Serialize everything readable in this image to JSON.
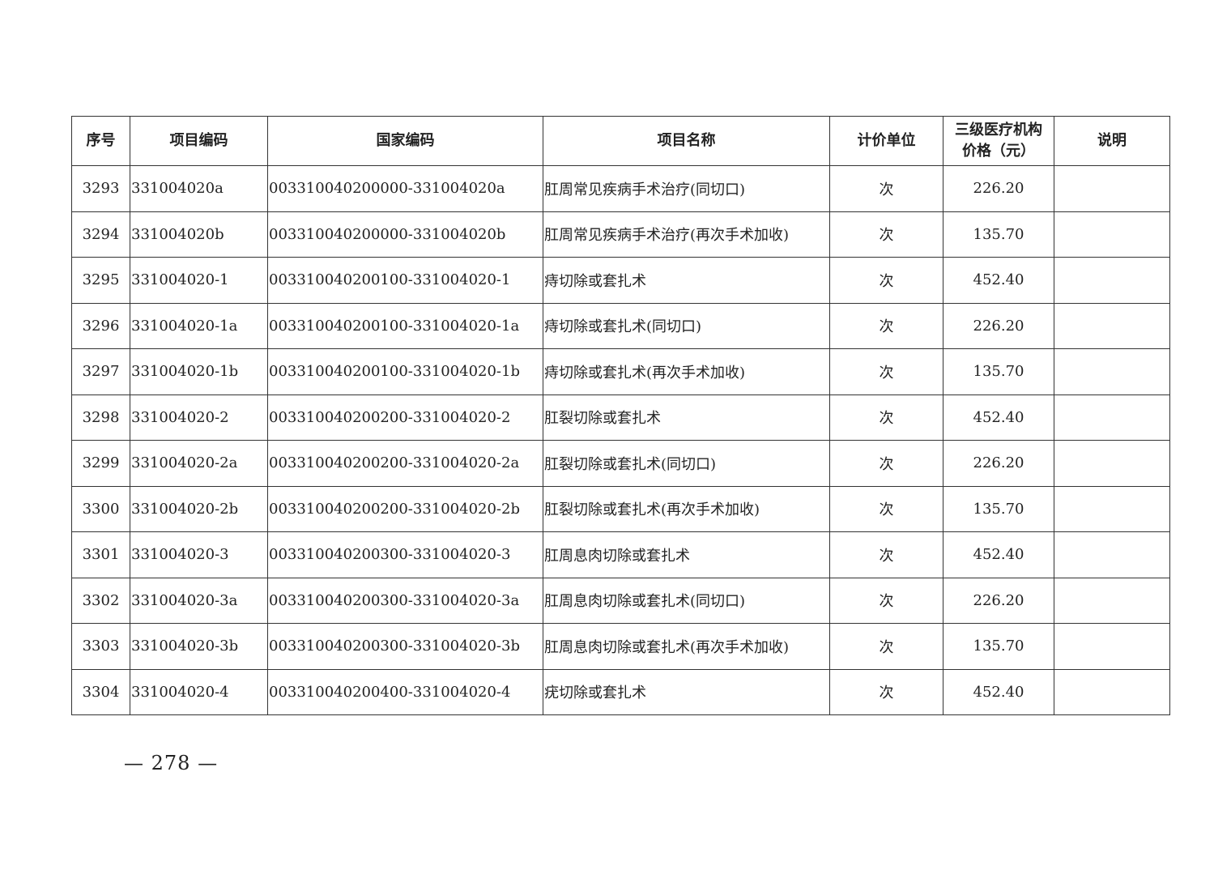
{
  "headers": [
    "序号",
    "项目编码",
    "国家编码",
    "项目名称",
    "计价单位",
    "三级医疗机构\n价格（元）",
    "说明"
  ],
  "header_price_line1": "三级医疗机构",
  "header_price_line2": "价格（元）",
  "rows": [
    {
      "no": "3293",
      "code": "331004020a",
      "national_code": "003310040200000-331004020a",
      "name": "肛周常见疾病手术治疗(同切口)",
      "unit": "次",
      "price": "226.20",
      "note": ""
    },
    {
      "no": "3294",
      "code": "331004020b",
      "national_code": "003310040200000-331004020b",
      "name": "肛周常见疾病手术治疗(再次手术加收)",
      "unit": "次",
      "price": "135.70",
      "note": ""
    },
    {
      "no": "3295",
      "code": "331004020-1",
      "national_code": "003310040200100-331004020-1",
      "name": "痔切除或套扎术",
      "unit": "次",
      "price": "452.40",
      "note": ""
    },
    {
      "no": "3296",
      "code": "331004020-1a",
      "national_code": "003310040200100-331004020-1a",
      "name": "痔切除或套扎术(同切口)",
      "unit": "次",
      "price": "226.20",
      "note": ""
    },
    {
      "no": "3297",
      "code": "331004020-1b",
      "national_code": "003310040200100-331004020-1b",
      "name": "痔切除或套扎术(再次手术加收)",
      "unit": "次",
      "price": "135.70",
      "note": ""
    },
    {
      "no": "3298",
      "code": "331004020-2",
      "national_code": "003310040200200-331004020-2",
      "name": "肛裂切除或套扎术",
      "unit": "次",
      "price": "452.40",
      "note": ""
    },
    {
      "no": "3299",
      "code": "331004020-2a",
      "national_code": "003310040200200-331004020-2a",
      "name": "肛裂切除或套扎术(同切口)",
      "unit": "次",
      "price": "226.20",
      "note": ""
    },
    {
      "no": "3300",
      "code": "331004020-2b",
      "national_code": "003310040200200-331004020-2b",
      "name": "肛裂切除或套扎术(再次手术加收)",
      "unit": "次",
      "price": "135.70",
      "note": ""
    },
    {
      "no": "3301",
      "code": "331004020-3",
      "national_code": "003310040200300-331004020-3",
      "name": "肛周息肉切除或套扎术",
      "unit": "次",
      "price": "452.40",
      "note": ""
    },
    {
      "no": "3302",
      "code": "331004020-3a",
      "national_code": "003310040200300-331004020-3a",
      "name": "肛周息肉切除或套扎术(同切口)",
      "unit": "次",
      "price": "226.20",
      "note": ""
    },
    {
      "no": "3303",
      "code": "331004020-3b",
      "national_code": "003310040200300-331004020-3b",
      "name": "肛周息肉切除或套扎术(再次手术加收)",
      "unit": "次",
      "price": "135.70",
      "note": ""
    },
    {
      "no": "3304",
      "code": "331004020-4",
      "national_code": "003310040200400-331004020-4",
      "name": "疣切除或套扎术",
      "unit": "次",
      "price": "452.40",
      "note": ""
    }
  ],
  "page_number": "— 278 —"
}
